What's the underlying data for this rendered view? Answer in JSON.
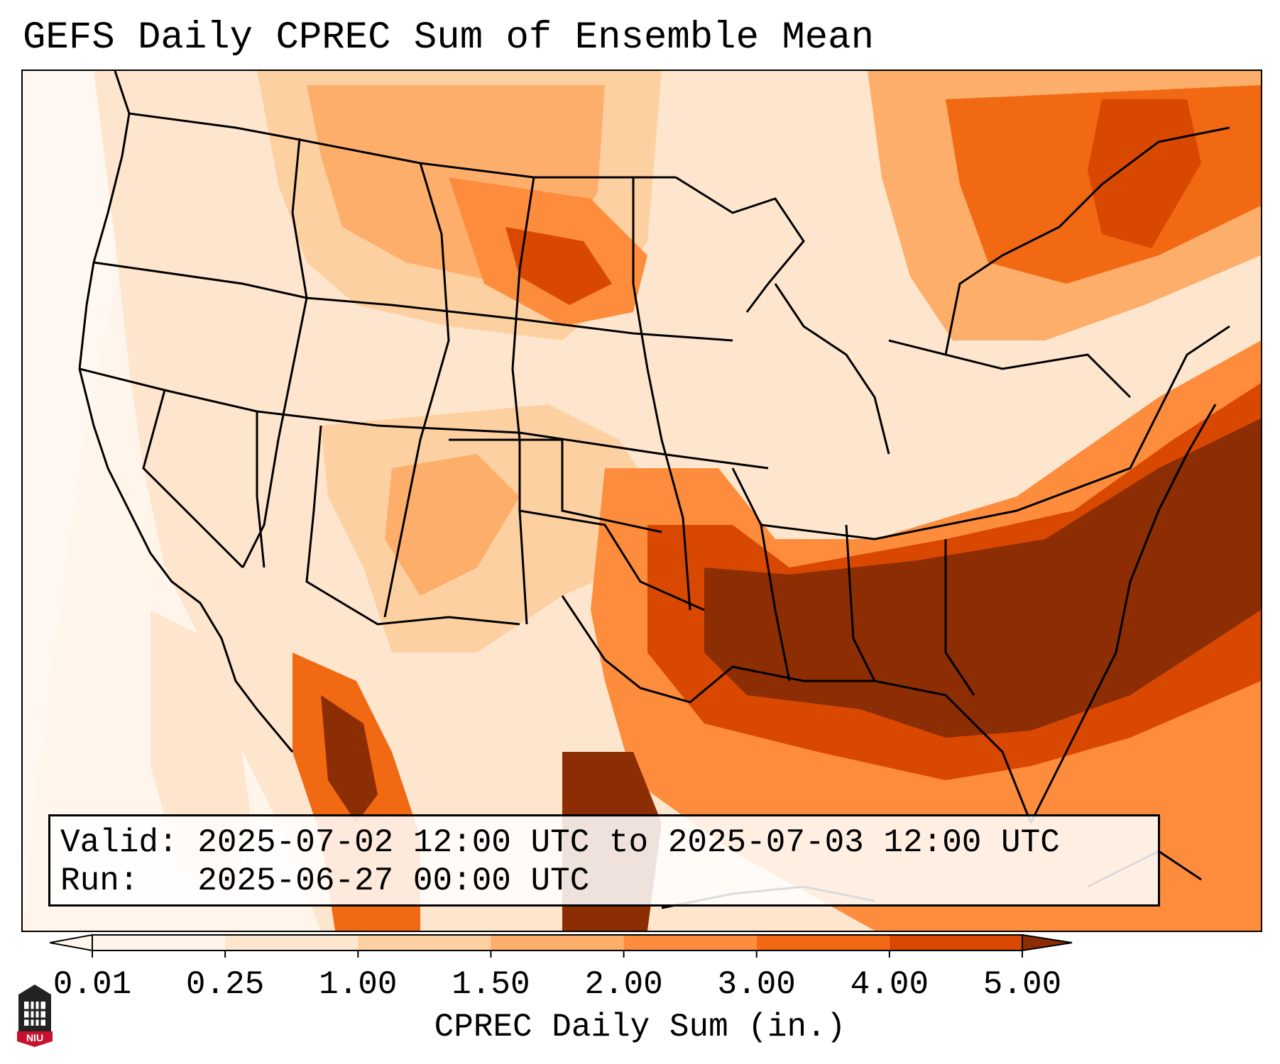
{
  "title": "GEFS Daily CPREC Sum of Ensemble Mean",
  "info": {
    "valid_line": "Valid: 2025-07-02 12:00 UTC to 2025-07-03 12:00 UTC",
    "run_line": "Run:   2025-06-27 00:00 UTC"
  },
  "colorbar": {
    "title": "CPREC Daily Sum (in.)",
    "ticks": [
      "0.01",
      "0.25",
      "1.00",
      "1.50",
      "2.00",
      "3.00",
      "4.00",
      "5.00"
    ],
    "colors": [
      "#fff5eb",
      "#fee6ce",
      "#fdd0a2",
      "#fdae6b",
      "#fd8d3c",
      "#f16913",
      "#d94801",
      "#8c2d04"
    ]
  },
  "logo": {
    "text": "NIU",
    "color": "#c8102e"
  }
}
